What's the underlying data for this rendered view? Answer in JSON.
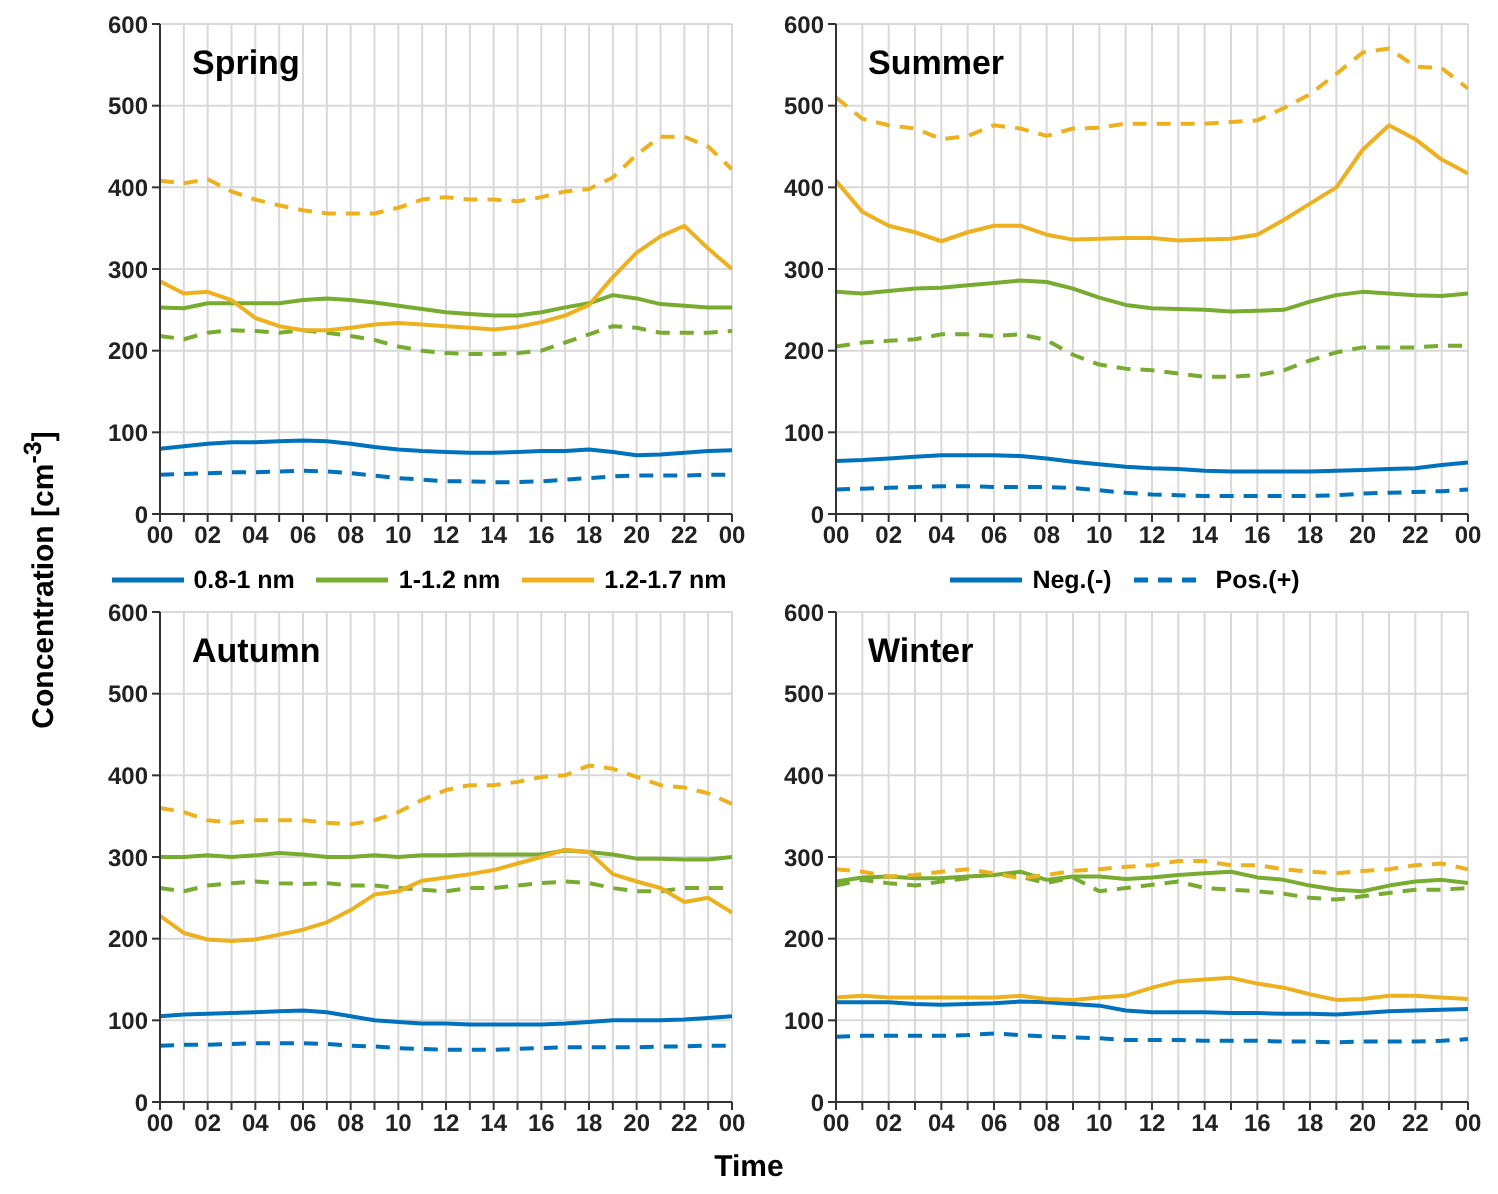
{
  "chart_data": [
    {
      "type": "line",
      "title": "Spring",
      "ylabel": "Concentration [cm$^{-3}$]",
      "x": [
        0,
        1,
        2,
        3,
        4,
        5,
        6,
        7,
        8,
        9,
        10,
        11,
        12,
        13,
        14,
        15,
        16,
        17,
        18,
        19,
        20,
        21,
        22,
        23,
        24
      ],
      "xlim": [
        0,
        24
      ],
      "xticks": [
        {
          "value": 0,
          "label": "00"
        },
        {
          "value": 1,
          "label": null
        },
        {
          "value": 2,
          "label": "02"
        },
        {
          "value": 3,
          "label": null
        },
        {
          "value": 4,
          "label": "04"
        },
        {
          "value": 5,
          "label": null
        },
        {
          "value": 6,
          "label": "06"
        },
        {
          "value": 7,
          "label": null
        },
        {
          "value": 8,
          "label": "08"
        },
        {
          "value": 9,
          "label": null
        },
        {
          "value": 10,
          "label": "10"
        },
        {
          "value": 11,
          "label": null
        },
        {
          "value": 12,
          "label": "12"
        },
        {
          "value": 13,
          "label": null
        },
        {
          "value": 14,
          "label": "14"
        },
        {
          "value": 15,
          "label": null
        },
        {
          "value": 16,
          "label": "16"
        },
        {
          "value": 17,
          "label": null
        },
        {
          "value": 18,
          "label": "18"
        },
        {
          "value": 19,
          "label": null
        },
        {
          "value": 20,
          "label": "20"
        },
        {
          "value": 21,
          "label": null
        },
        {
          "value": 22,
          "label": "22"
        },
        {
          "value": 23,
          "label": null
        },
        {
          "value": 24,
          "label": "00"
        }
      ],
      "ylim": [
        0,
        600
      ],
      "yticks": [
        0,
        100,
        200,
        300,
        400,
        500,
        600
      ],
      "grid": true,
      "legend": "bottom",
      "series": [
        {
          "name": "0.8-1 nm",
          "color": "#0072bd",
          "values": [
            80,
            83,
            86,
            88,
            88,
            89,
            90,
            89,
            86,
            82,
            79,
            77,
            76,
            75,
            75,
            76,
            77,
            77,
            79,
            76,
            72,
            73,
            75,
            77,
            78
          ]
        },
        {
          "color": "#0072bd",
          "line_style": "dashed",
          "values": [
            48,
            49,
            50,
            51,
            51,
            52,
            53,
            52,
            50,
            47,
            44,
            42,
            40,
            40,
            39,
            39,
            40,
            42,
            44,
            46,
            47,
            47,
            47,
            48,
            48
          ]
        },
        {
          "name": "1-1.2 nm",
          "color": "#77ac30",
          "values": [
            253,
            252,
            258,
            258,
            258,
            258,
            262,
            264,
            262,
            259,
            255,
            251,
            247,
            245,
            243,
            243,
            247,
            253,
            258,
            268,
            264,
            257,
            255,
            253,
            253
          ]
        },
        {
          "color": "#77ac30",
          "line_style": "dashed",
          "values": [
            218,
            214,
            222,
            225,
            224,
            222,
            225,
            222,
            218,
            213,
            205,
            200,
            197,
            196,
            196,
            197,
            200,
            210,
            220,
            230,
            228,
            222,
            222,
            222,
            224
          ]
        },
        {
          "name": "1.2-1.7 nm",
          "color": "#edb120",
          "values": [
            285,
            270,
            272,
            262,
            240,
            230,
            225,
            225,
            228,
            232,
            234,
            232,
            230,
            228,
            226,
            229,
            235,
            243,
            256,
            290,
            320,
            340,
            353,
            325,
            300
          ]
        },
        {
          "color": "#edb120",
          "line_style": "dashed",
          "values": [
            408,
            405,
            410,
            395,
            385,
            378,
            372,
            368,
            368,
            368,
            375,
            385,
            388,
            385,
            385,
            383,
            388,
            395,
            398,
            412,
            440,
            462,
            462,
            450,
            422
          ]
        }
      ]
    },
    {
      "type": "line",
      "title": "Summer",
      "x": [
        0,
        1,
        2,
        3,
        4,
        5,
        6,
        7,
        8,
        9,
        10,
        11,
        12,
        13,
        14,
        15,
        16,
        17,
        18,
        19,
        20,
        21,
        22,
        23,
        24
      ],
      "xlim": [
        0,
        24
      ],
      "xticks": [
        {
          "value": 0,
          "label": "00"
        },
        {
          "value": 1,
          "label": null
        },
        {
          "value": 2,
          "label": "02"
        },
        {
          "value": 3,
          "label": null
        },
        {
          "value": 4,
          "label": "04"
        },
        {
          "value": 5,
          "label": null
        },
        {
          "value": 6,
          "label": "06"
        },
        {
          "value": 7,
          "label": null
        },
        {
          "value": 8,
          "label": "08"
        },
        {
          "value": 9,
          "label": null
        },
        {
          "value": 10,
          "label": "10"
        },
        {
          "value": 11,
          "label": null
        },
        {
          "value": 12,
          "label": "12"
        },
        {
          "value": 13,
          "label": null
        },
        {
          "value": 14,
          "label": "14"
        },
        {
          "value": 15,
          "label": null
        },
        {
          "value": 16,
          "label": "16"
        },
        {
          "value": 17,
          "label": null
        },
        {
          "value": 18,
          "label": "18"
        },
        {
          "value": 19,
          "label": null
        },
        {
          "value": 20,
          "label": "20"
        },
        {
          "value": 21,
          "label": null
        },
        {
          "value": 22,
          "label": "22"
        },
        {
          "value": 23,
          "label": null
        },
        {
          "value": 24,
          "label": "00"
        }
      ],
      "ylim": [
        0,
        600
      ],
      "yticks": [
        0,
        100,
        200,
        300,
        400,
        500,
        600
      ],
      "grid": true,
      "legend": "bottom",
      "series": [
        {
          "name": "Neg.(-)",
          "color": "#0072bd",
          "values": [
            65,
            66,
            68,
            70,
            72,
            72,
            72,
            71,
            68,
            64,
            61,
            58,
            56,
            55,
            53,
            52,
            52,
            52,
            52,
            53,
            54,
            55,
            56,
            60,
            63
          ]
        },
        {
          "name": "Pos.(+)",
          "color": "#0072bd",
          "line_style": "dashed",
          "values": [
            30,
            31,
            32,
            33,
            34,
            34,
            33,
            33,
            33,
            32,
            29,
            26,
            24,
            23,
            22,
            22,
            22,
            22,
            22,
            23,
            25,
            26,
            27,
            28,
            30
          ]
        },
        {
          "color": "#77ac30",
          "values": [
            272,
            270,
            273,
            276,
            277,
            280,
            283,
            286,
            284,
            276,
            265,
            256,
            252,
            251,
            250,
            248,
            249,
            250,
            260,
            268,
            272,
            270,
            268,
            267,
            270
          ]
        },
        {
          "color": "#77ac30",
          "line_style": "dashed",
          "values": [
            205,
            210,
            212,
            214,
            220,
            220,
            218,
            220,
            213,
            195,
            183,
            178,
            176,
            172,
            168,
            168,
            170,
            176,
            188,
            198,
            204,
            204,
            204,
            206,
            206
          ]
        },
        {
          "color": "#edb120",
          "values": [
            408,
            370,
            353,
            345,
            334,
            345,
            353,
            353,
            342,
            336,
            337,
            338,
            338,
            335,
            336,
            337,
            342,
            360,
            380,
            400,
            446,
            476,
            459,
            434,
            417
          ]
        },
        {
          "color": "#edb120",
          "line_style": "dashed",
          "values": [
            510,
            484,
            476,
            472,
            459,
            463,
            476,
            472,
            463,
            472,
            473,
            478,
            478,
            478,
            478,
            480,
            482,
            497,
            514,
            539,
            565,
            570,
            548,
            546,
            521
          ]
        }
      ]
    },
    {
      "type": "line",
      "title": "Autumn",
      "xlabel": "Time",
      "x": [
        0,
        1,
        2,
        3,
        4,
        5,
        6,
        7,
        8,
        9,
        10,
        11,
        12,
        13,
        14,
        15,
        16,
        17,
        18,
        19,
        20,
        21,
        22,
        23,
        24
      ],
      "xlim": [
        0,
        24
      ],
      "xticks": [
        {
          "value": 0,
          "label": "00"
        },
        {
          "value": 1,
          "label": null
        },
        {
          "value": 2,
          "label": "02"
        },
        {
          "value": 3,
          "label": null
        },
        {
          "value": 4,
          "label": "04"
        },
        {
          "value": 5,
          "label": null
        },
        {
          "value": 6,
          "label": "06"
        },
        {
          "value": 7,
          "label": null
        },
        {
          "value": 8,
          "label": "08"
        },
        {
          "value": 9,
          "label": null
        },
        {
          "value": 10,
          "label": "10"
        },
        {
          "value": 11,
          "label": null
        },
        {
          "value": 12,
          "label": "12"
        },
        {
          "value": 13,
          "label": null
        },
        {
          "value": 14,
          "label": "14"
        },
        {
          "value": 15,
          "label": null
        },
        {
          "value": 16,
          "label": "16"
        },
        {
          "value": 17,
          "label": null
        },
        {
          "value": 18,
          "label": "18"
        },
        {
          "value": 19,
          "label": null
        },
        {
          "value": 20,
          "label": "20"
        },
        {
          "value": 21,
          "label": null
        },
        {
          "value": 22,
          "label": "22"
        },
        {
          "value": 23,
          "label": null
        },
        {
          "value": 24,
          "label": "00"
        }
      ],
      "ylim": [
        0,
        600
      ],
      "yticks": [
        0,
        100,
        200,
        300,
        400,
        500,
        600
      ],
      "grid": true,
      "series": [
        {
          "color": "#0072bd",
          "values": [
            105,
            107,
            108,
            109,
            110,
            111,
            112,
            110,
            105,
            100,
            98,
            96,
            96,
            95,
            95,
            95,
            95,
            96,
            98,
            100,
            100,
            100,
            101,
            103,
            105
          ]
        },
        {
          "color": "#0072bd",
          "line_style": "dashed",
          "values": [
            69,
            70,
            70,
            71,
            72,
            72,
            72,
            71,
            69,
            68,
            66,
            65,
            64,
            64,
            64,
            65,
            66,
            67,
            67,
            67,
            67,
            68,
            68,
            69,
            69
          ]
        },
        {
          "color": "#77ac30",
          "values": [
            300,
            300,
            302,
            300,
            302,
            305,
            303,
            300,
            300,
            302,
            300,
            302,
            302,
            303,
            303,
            303,
            303,
            308,
            306,
            303,
            298,
            298,
            297,
            297,
            300
          ]
        },
        {
          "color": "#77ac30",
          "line_style": "dashed",
          "values": [
            262,
            258,
            265,
            268,
            270,
            268,
            267,
            268,
            265,
            265,
            262,
            260,
            258,
            262,
            262,
            265,
            268,
            270,
            268,
            262,
            258,
            258,
            262,
            262,
            262
          ]
        },
        {
          "color": "#edb120",
          "values": [
            228,
            207,
            199,
            197,
            199,
            205,
            211,
            220,
            235,
            254,
            258,
            271,
            275,
            279,
            284,
            292,
            300,
            309,
            306,
            279,
            270,
            262,
            245,
            250,
            232
          ]
        },
        {
          "color": "#edb120",
          "line_style": "dashed",
          "values": [
            360,
            355,
            345,
            342,
            345,
            345,
            345,
            342,
            340,
            345,
            355,
            370,
            382,
            388,
            388,
            392,
            398,
            400,
            412,
            408,
            398,
            388,
            385,
            378,
            365
          ]
        }
      ]
    },
    {
      "type": "line",
      "title": "Winter",
      "x": [
        0,
        1,
        2,
        3,
        4,
        5,
        6,
        7,
        8,
        9,
        10,
        11,
        12,
        13,
        14,
        15,
        16,
        17,
        18,
        19,
        20,
        21,
        22,
        23,
        24
      ],
      "xlim": [
        0,
        24
      ],
      "xticks": [
        {
          "value": 0,
          "label": "00"
        },
        {
          "value": 1,
          "label": null
        },
        {
          "value": 2,
          "label": "02"
        },
        {
          "value": 3,
          "label": null
        },
        {
          "value": 4,
          "label": "04"
        },
        {
          "value": 5,
          "label": null
        },
        {
          "value": 6,
          "label": "06"
        },
        {
          "value": 7,
          "label": null
        },
        {
          "value": 8,
          "label": "08"
        },
        {
          "value": 9,
          "label": null
        },
        {
          "value": 10,
          "label": "10"
        },
        {
          "value": 11,
          "label": null
        },
        {
          "value": 12,
          "label": "12"
        },
        {
          "value": 13,
          "label": null
        },
        {
          "value": 14,
          "label": "14"
        },
        {
          "value": 15,
          "label": null
        },
        {
          "value": 16,
          "label": "16"
        },
        {
          "value": 17,
          "label": null
        },
        {
          "value": 18,
          "label": "18"
        },
        {
          "value": 19,
          "label": null
        },
        {
          "value": 20,
          "label": "20"
        },
        {
          "value": 21,
          "label": null
        },
        {
          "value": 22,
          "label": "22"
        },
        {
          "value": 23,
          "label": null
        },
        {
          "value": 24,
          "label": "00"
        }
      ],
      "ylim": [
        0,
        600
      ],
      "yticks": [
        0,
        100,
        200,
        300,
        400,
        500,
        600
      ],
      "grid": true,
      "series": [
        {
          "color": "#0072bd",
          "values": [
            122,
            122,
            122,
            120,
            119,
            120,
            121,
            123,
            122,
            120,
            118,
            112,
            110,
            110,
            110,
            109,
            109,
            108,
            108,
            107,
            109,
            111,
            112,
            113,
            114
          ]
        },
        {
          "color": "#0072bd",
          "line_style": "dashed",
          "values": [
            80,
            81,
            81,
            81,
            81,
            82,
            84,
            82,
            80,
            79,
            78,
            76,
            76,
            76,
            75,
            75,
            75,
            74,
            74,
            73,
            74,
            74,
            74,
            75,
            77
          ]
        },
        {
          "color": "#77ac30",
          "values": [
            270,
            275,
            276,
            274,
            274,
            276,
            278,
            282,
            272,
            276,
            276,
            273,
            275,
            278,
            280,
            282,
            275,
            272,
            265,
            260,
            258,
            265,
            270,
            272,
            268
          ]
        },
        {
          "color": "#77ac30",
          "line_style": "dashed",
          "values": [
            265,
            272,
            268,
            265,
            270,
            274,
            280,
            276,
            268,
            275,
            258,
            262,
            266,
            270,
            262,
            260,
            258,
            255,
            250,
            248,
            252,
            256,
            260,
            260,
            262
          ]
        },
        {
          "color": "#edb120",
          "values": [
            128,
            130,
            128,
            128,
            128,
            128,
            128,
            130,
            126,
            125,
            128,
            130,
            140,
            148,
            150,
            152,
            145,
            140,
            132,
            125,
            126,
            130,
            130,
            128,
            126
          ]
        },
        {
          "color": "#edb120",
          "line_style": "dashed",
          "values": [
            285,
            282,
            276,
            278,
            282,
            285,
            280,
            274,
            278,
            283,
            285,
            288,
            290,
            295,
            295,
            290,
            290,
            285,
            282,
            280,
            283,
            285,
            290,
            292,
            285
          ]
        }
      ]
    }
  ]
}
